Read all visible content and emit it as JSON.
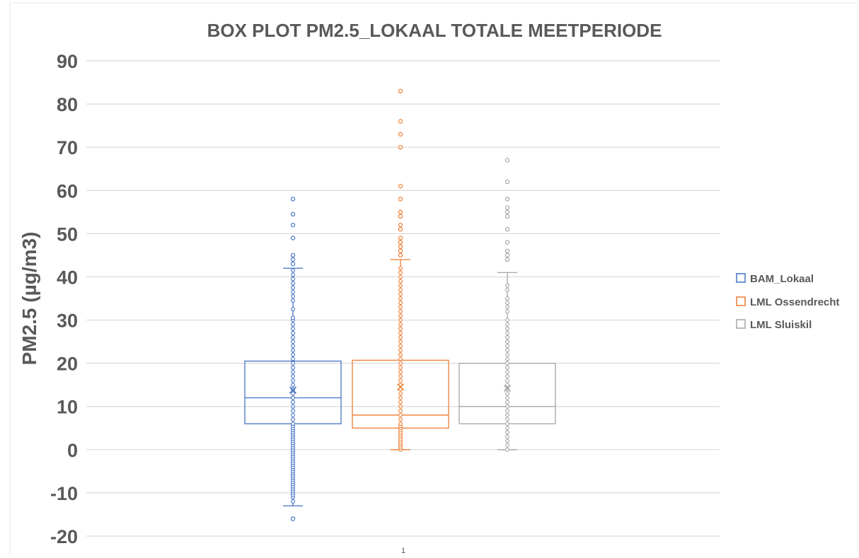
{
  "chart_data": {
    "type": "box",
    "title": "BOX PLOT PM2.5_LOKAAL TOTALE MEETPERIODE",
    "ylabel": "PM2.5 (µg/m3)",
    "xlabel": "",
    "categories": [
      "1"
    ],
    "ylim": [
      -20,
      90
    ],
    "yticks": [
      -20,
      -10,
      0,
      10,
      20,
      30,
      40,
      50,
      60,
      70,
      80,
      90
    ],
    "grid": true,
    "legend_position": "right",
    "series": [
      {
        "name": "BAM_Lokaal",
        "color": "#4472C4",
        "q1": 6,
        "median": 12,
        "q3": 20.5,
        "mean": 13.8,
        "whisker_low": -13,
        "whisker_high": 42,
        "outliers": [
          -16,
          43,
          44,
          45,
          49,
          52,
          54.5,
          58
        ],
        "inner_points": [
          -12,
          -11,
          -10.5,
          -10,
          -9.5,
          -9,
          -8.5,
          -8,
          -7.5,
          -7,
          -6.5,
          -6,
          -5.5,
          -5,
          -4.5,
          -4,
          -3.5,
          -3,
          -2.5,
          -2,
          -1.5,
          -1,
          -0.5,
          0,
          0.5,
          1,
          1.5,
          2,
          2.5,
          3,
          3.5,
          4,
          4.5,
          5,
          5.5,
          6,
          7,
          8,
          9,
          10,
          11,
          12,
          13,
          14,
          15,
          16,
          17,
          18,
          19,
          20,
          21,
          22,
          23,
          24,
          25,
          26,
          27,
          28,
          29,
          30,
          30.5,
          32.5,
          34.5,
          35.5,
          36.5,
          37.5,
          38.5,
          39.5,
          40.5,
          41.5
        ]
      },
      {
        "name": "LML Ossendrecht",
        "color": "#ED7D31",
        "q1": 5,
        "median": 8,
        "q3": 20.7,
        "mean": 14.5,
        "whisker_low": 0,
        "whisker_high": 44,
        "outliers": [
          45,
          46,
          47,
          48,
          49,
          51,
          52,
          54,
          55,
          58,
          61,
          70,
          73,
          76,
          83
        ],
        "inner_points": [
          0,
          0.5,
          1,
          1.5,
          2,
          2.5,
          3,
          3.5,
          4,
          4.5,
          5,
          5.5,
          6,
          7,
          8,
          9,
          10,
          11,
          12,
          13,
          14,
          15,
          16,
          17,
          18,
          19,
          20,
          21,
          22,
          23,
          24,
          25,
          26,
          27,
          28,
          29,
          30,
          31,
          32,
          33,
          34,
          35,
          36,
          37,
          38,
          39,
          40,
          41,
          42
        ]
      },
      {
        "name": "LML Sluiskil",
        "color": "#A5A5A5",
        "q1": 6,
        "median": 10,
        "q3": 20,
        "mean": 14.2,
        "whisker_low": 0,
        "whisker_high": 41,
        "outliers": [
          44,
          45,
          46,
          48,
          51,
          54,
          55,
          56,
          58,
          62,
          67
        ],
        "inner_points": [
          0,
          1,
          2,
          3,
          4,
          5,
          6,
          7,
          8,
          9,
          10,
          11,
          12,
          13,
          14,
          15,
          16,
          17,
          18,
          19,
          20,
          21,
          22,
          23,
          24,
          25,
          26,
          27,
          28,
          29,
          30,
          32,
          33,
          34,
          35,
          37,
          38
        ]
      }
    ]
  }
}
